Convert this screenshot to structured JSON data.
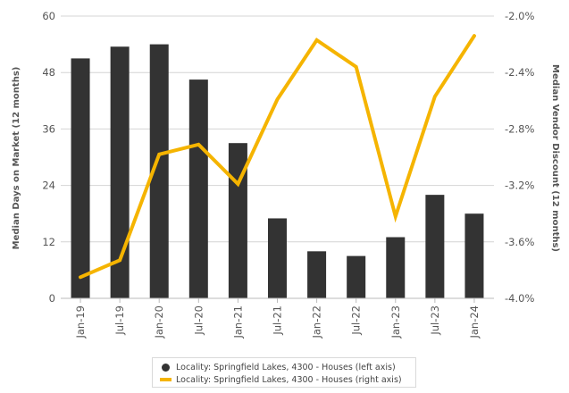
{
  "chart_data": {
    "type": "bar+line",
    "categories": [
      "Jan-19",
      "Jul-19",
      "Jan-20",
      "Jul-20",
      "Jan-21",
      "Jul-21",
      "Jan-22",
      "Jul-22",
      "Jan-23",
      "Jul-23",
      "Jan-24"
    ],
    "left_axis": {
      "label": "Median Days on Market (12 months)",
      "ylim": [
        0,
        60
      ],
      "ticks": [
        0,
        12,
        24,
        36,
        48,
        60
      ],
      "tick_labels": [
        "0",
        "12",
        "24",
        "36",
        "48",
        "60"
      ]
    },
    "right_axis": {
      "label": "Median Vendor Discount (12 months)",
      "ylim": [
        -4.0,
        -2.0
      ],
      "ticks": [
        -4.0,
        -3.6,
        -3.2,
        -2.8,
        -2.4,
        -2.0
      ],
      "tick_labels": [
        "-4.0%",
        "-3.6%",
        "-3.2%",
        "-2.8%",
        "-2.4%",
        "-2.0%"
      ]
    },
    "series": [
      {
        "name": "Locality: Springfield Lakes, 4300 - Houses (left axis)",
        "type": "bar",
        "axis": "left",
        "color": "#333333",
        "values": [
          51,
          53.5,
          54,
          46.5,
          33,
          17,
          10,
          9,
          13,
          22,
          18
        ]
      },
      {
        "name": "Locality: Springfield Lakes, 4300 - Houses (right axis)",
        "type": "line",
        "axis": "right",
        "color": "#f5b400",
        "values": [
          -3.85,
          -3.73,
          -2.98,
          -2.91,
          -3.19,
          -2.59,
          -2.17,
          -2.36,
          -3.42,
          -2.57,
          -2.14
        ]
      }
    ],
    "grid": true,
    "legend_position": "bottom"
  }
}
